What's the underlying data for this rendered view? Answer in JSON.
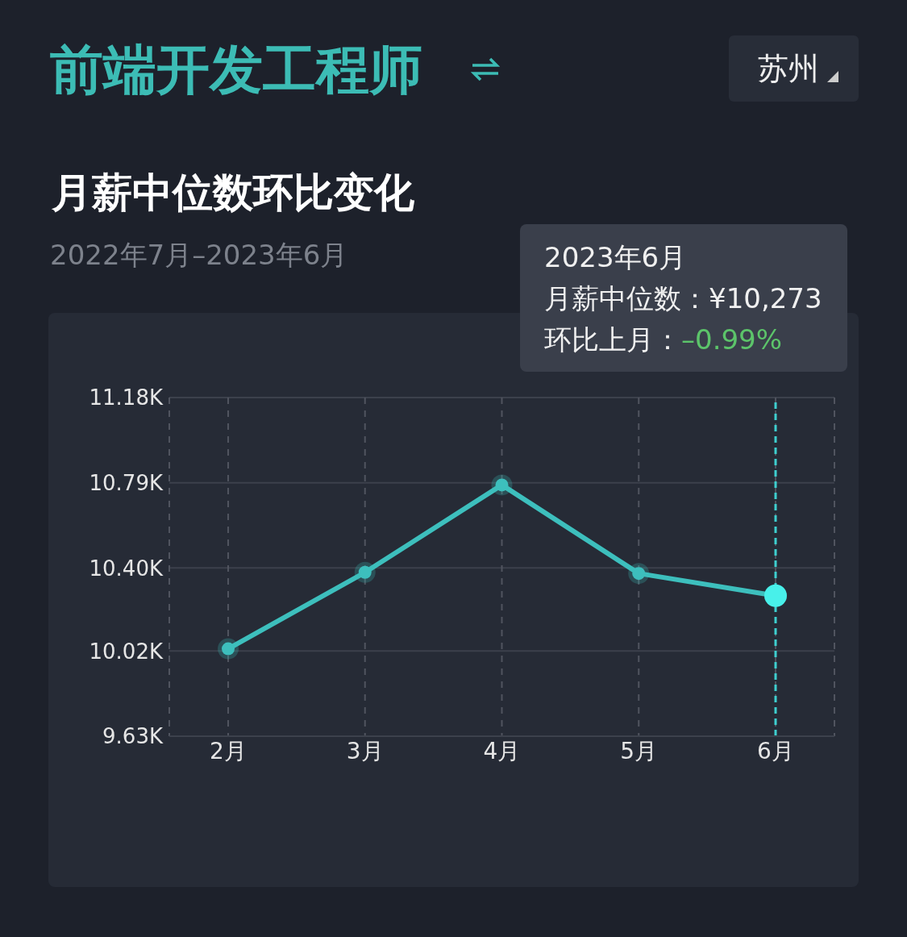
{
  "chart_data": {
    "type": "line",
    "title": "前端开发工程师",
    "subtitle": "月薪中位数环比变化",
    "annotations": [
      "苏州",
      "2022年7月–2023年6月",
      "2023年6月",
      "月薪中位数：¥10,273",
      "环比上月：–0.99%"
    ],
    "categories": [
      "2月",
      "3月",
      "4月",
      "5月",
      "6月"
    ],
    "series": [
      {
        "color": "#3dbfbd",
        "values": [
          10.03,
          10.38,
          10.78,
          10.375,
          10.273
        ]
      }
    ],
    "ylim": [
      9.63,
      11.18
    ],
    "yticks": [
      {
        "value": 9.63,
        "label": "9.63K"
      },
      {
        "value": 10.02,
        "label": "10.02K"
      },
      {
        "value": 10.4,
        "label": "10.40K"
      },
      {
        "value": 10.79,
        "label": "10.79K"
      },
      {
        "value": 11.18,
        "label": "11.18K"
      }
    ],
    "grid": true,
    "marker": "circle",
    "line_style": "solid",
    "ref_lines": [
      {
        "axis": "x",
        "value": "6月",
        "color": "#3ecfcf",
        "line_style": "dashed"
      }
    ]
  }
}
